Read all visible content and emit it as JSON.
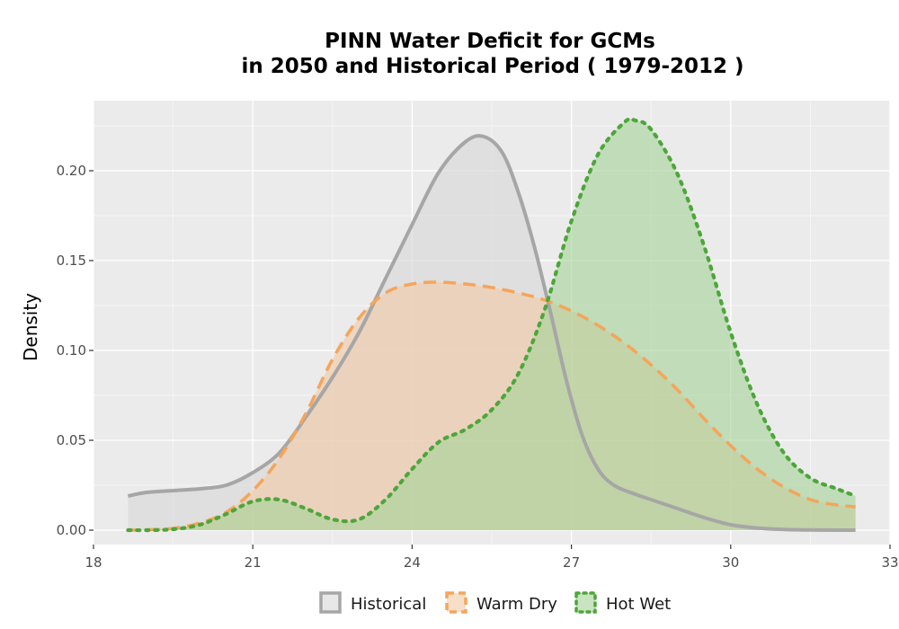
{
  "chart_data": {
    "type": "area",
    "title_lines": [
      "PINN  Water Deficit for GCMs",
      "in 2050 and Historical Period ( 1979-2012 )"
    ],
    "xlabel": "",
    "ylabel": "Density",
    "xlim": [
      18,
      33
    ],
    "ylim": [
      -0.008,
      0.239
    ],
    "x_ticks": [
      18,
      21,
      24,
      27,
      30,
      33
    ],
    "y_ticks": [
      0.0,
      0.05,
      0.1,
      0.15,
      0.2
    ],
    "x_tick_labels": [
      "18",
      "21",
      "24",
      "27",
      "30",
      "33"
    ],
    "y_tick_labels": [
      "0.00",
      "0.05",
      "0.10",
      "0.15",
      "0.20"
    ],
    "grid": true,
    "legend_position": "bottom",
    "series": [
      {
        "name": "Historical",
        "line_style": "solid",
        "line_color": "#a6a6a6",
        "fill_color": "#d9d9d9",
        "x": [
          18.65,
          19.0,
          19.5,
          20.0,
          20.5,
          21.0,
          21.5,
          22.0,
          22.5,
          23.0,
          23.5,
          24.0,
          24.5,
          25.0,
          25.35,
          25.7,
          26.0,
          26.3,
          26.6,
          26.9,
          27.2,
          27.5,
          27.8,
          28.2,
          28.6,
          29.0,
          29.5,
          30.0,
          30.5,
          31.0,
          31.5,
          32.0,
          32.35
        ],
        "y": [
          0.019,
          0.021,
          0.022,
          0.023,
          0.025,
          0.032,
          0.043,
          0.063,
          0.085,
          0.11,
          0.14,
          0.17,
          0.199,
          0.216,
          0.219,
          0.21,
          0.188,
          0.158,
          0.122,
          0.084,
          0.053,
          0.034,
          0.025,
          0.02,
          0.016,
          0.012,
          0.007,
          0.003,
          0.0012,
          0.0004,
          0.0001,
          0.0,
          0.0
        ]
      },
      {
        "name": "Warm Dry",
        "line_style": "dashed",
        "line_color": "#f5a55a",
        "fill_color": "#f2c9a6",
        "x": [
          18.65,
          19.0,
          19.5,
          20.0,
          20.5,
          21.0,
          21.5,
          22.0,
          22.5,
          23.0,
          23.5,
          24.0,
          24.5,
          25.0,
          25.5,
          26.0,
          26.5,
          27.0,
          27.5,
          28.0,
          28.5,
          29.0,
          29.5,
          30.0,
          30.5,
          31.0,
          31.5,
          32.0,
          32.35
        ],
        "y": [
          0.0,
          0.0002,
          0.001,
          0.004,
          0.01,
          0.022,
          0.04,
          0.065,
          0.095,
          0.118,
          0.132,
          0.137,
          0.138,
          0.137,
          0.135,
          0.132,
          0.128,
          0.122,
          0.114,
          0.104,
          0.092,
          0.078,
          0.062,
          0.047,
          0.034,
          0.024,
          0.017,
          0.014,
          0.013
        ]
      },
      {
        "name": "Hot Wet",
        "line_style": "dotted",
        "line_color": "#4da63a",
        "fill_color": "#a6d49a",
        "x": [
          18.65,
          19.0,
          19.5,
          20.0,
          20.5,
          21.0,
          21.5,
          22.0,
          22.5,
          23.0,
          23.5,
          24.0,
          24.5,
          25.0,
          25.5,
          26.0,
          26.5,
          27.0,
          27.5,
          28.0,
          28.2,
          28.5,
          29.0,
          29.5,
          30.0,
          30.5,
          31.0,
          31.5,
          32.0,
          32.35
        ],
        "y": [
          0.0,
          0.0,
          0.0005,
          0.003,
          0.009,
          0.016,
          0.017,
          0.012,
          0.006,
          0.006,
          0.017,
          0.034,
          0.049,
          0.056,
          0.067,
          0.087,
          0.123,
          0.172,
          0.209,
          0.227,
          0.228,
          0.223,
          0.198,
          0.158,
          0.11,
          0.07,
          0.043,
          0.029,
          0.023,
          0.019
        ]
      }
    ]
  }
}
